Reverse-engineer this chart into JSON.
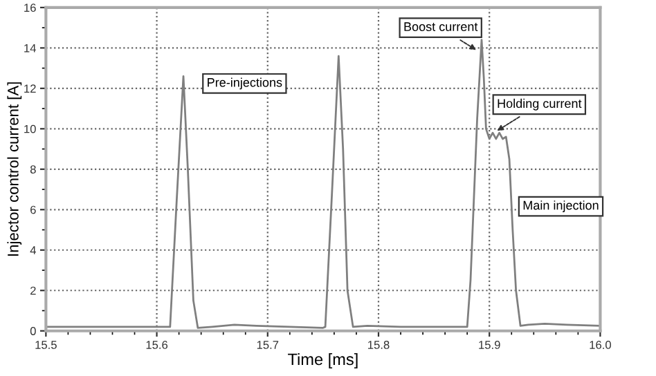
{
  "chart_data": {
    "type": "line",
    "xlabel": "Time [ms]",
    "ylabel": "Injector control current [A]",
    "xlim": [
      15.5,
      16.0
    ],
    "xticks": [
      15.5,
      15.6,
      15.7,
      15.8,
      15.9,
      {
        "value": 16.0,
        "label": "16.0"
      }
    ],
    "ylim": [
      0,
      16
    ],
    "yticks": [
      0,
      2,
      4,
      6,
      8,
      10,
      12,
      14,
      16
    ],
    "grid": true,
    "marker": "none",
    "line_style": "solid",
    "series": [
      {
        "color": "#7f7f7f",
        "x": [
          15.5,
          15.55,
          15.6,
          15.612,
          15.618,
          15.624,
          15.628,
          15.633,
          15.637,
          15.65,
          15.67,
          15.69,
          15.72,
          15.75,
          15.752,
          15.758,
          15.764,
          15.768,
          15.772,
          15.777,
          15.79,
          15.82,
          15.85,
          15.88,
          15.883,
          15.889,
          15.893,
          15.895,
          15.897,
          15.9,
          15.903,
          15.906,
          15.909,
          15.912,
          15.915,
          15.918,
          15.921,
          15.924,
          15.928,
          15.935,
          15.95,
          15.97,
          16.0
        ],
        "values": [
          0.2,
          0.2,
          0.2,
          0.2,
          6.5,
          12.6,
          8.0,
          1.5,
          0.15,
          0.2,
          0.3,
          0.25,
          0.2,
          0.15,
          0.2,
          6.8,
          13.6,
          9.0,
          2.0,
          0.2,
          0.25,
          0.2,
          0.2,
          0.2,
          2.5,
          10.5,
          14.4,
          12.5,
          10.0,
          9.5,
          9.8,
          9.5,
          9.8,
          9.5,
          9.6,
          8.5,
          5.0,
          2.0,
          0.25,
          0.3,
          0.35,
          0.3,
          0.25
        ]
      }
    ],
    "annotations": [
      "Pre-injections",
      {
        "text": "Boost current",
        "x": 15.891,
        "y": 13.8
      },
      {
        "text": "Holding current",
        "x": 15.904,
        "y": 9.8
      },
      "Main injection"
    ]
  }
}
